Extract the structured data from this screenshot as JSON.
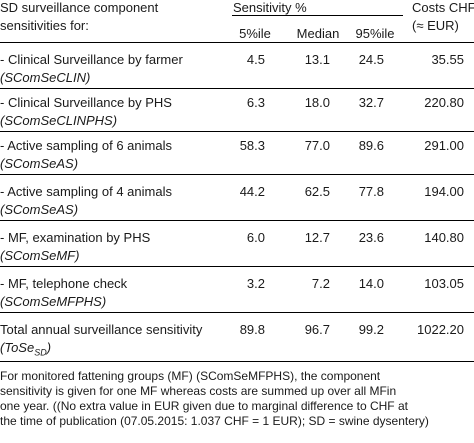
{
  "header": {
    "component_title_line1": "SD surveillance component",
    "component_title_line2": "sensitivities for:",
    "sensitivity_title": "Sensitivity %",
    "costs_title_line1": "Costs CHF",
    "costs_title_line2": "(≈ EUR)",
    "col_p5": "5%ile",
    "col_median": "Median",
    "col_p95": "95%ile"
  },
  "rows": [
    {
      "label": "- Clinical Surveillance by farmer",
      "code": "(SComSeCLIN)",
      "p5": "4.5",
      "median": "13.1",
      "p95": "24.5",
      "cost": "35.55"
    },
    {
      "label": "- Clinical Surveillance by PHS",
      "code": "(SComSeCLINPHS)",
      "p5": "6.3",
      "median": "18.0",
      "p95": "32.7",
      "cost": "220.80"
    },
    {
      "label": "- Active sampling of 6 animals",
      "code": "(SComSeAS)",
      "p5": "58.3",
      "median": "77.0",
      "p95": "89.6",
      "cost": "291.00"
    },
    {
      "label": "- Active sampling of 4 animals",
      "code": "(SComSeAS)",
      "p5": "44.2",
      "median": "62.5",
      "p95": "77.8",
      "cost": "194.00"
    },
    {
      "label": "- MF, examination by PHS",
      "code": "(SComSeMF)",
      "p5": "6.0",
      "median": "12.7",
      "p95": "23.6",
      "cost": "140.80"
    },
    {
      "label": "- MF, telephone check",
      "code": "(SComSeMFPHS)",
      "p5": "3.2",
      "median": "7.2",
      "p95": "14.0",
      "cost": "103.05"
    }
  ],
  "total": {
    "label": "Total annual surveillance sensitivity",
    "code_prefix": "(ToSe",
    "code_sub": "SD",
    "code_suffix": ")",
    "p5": "89.8",
    "median": "96.7",
    "p95": "99.2",
    "cost": "1022.20"
  },
  "footnote": {
    "line1": "For monitored fattening groups (MF) (SComSeMFPHS), the component",
    "line2": "sensitivity is given for one MF whereas costs are summed up over all MFin",
    "line3": "one year. ((No extra value in EUR given due to marginal difference to CHF at",
    "line4": "the time of publication (07.05.2015: 1.037 CHF = 1 EUR); SD = swine dysentery)"
  }
}
